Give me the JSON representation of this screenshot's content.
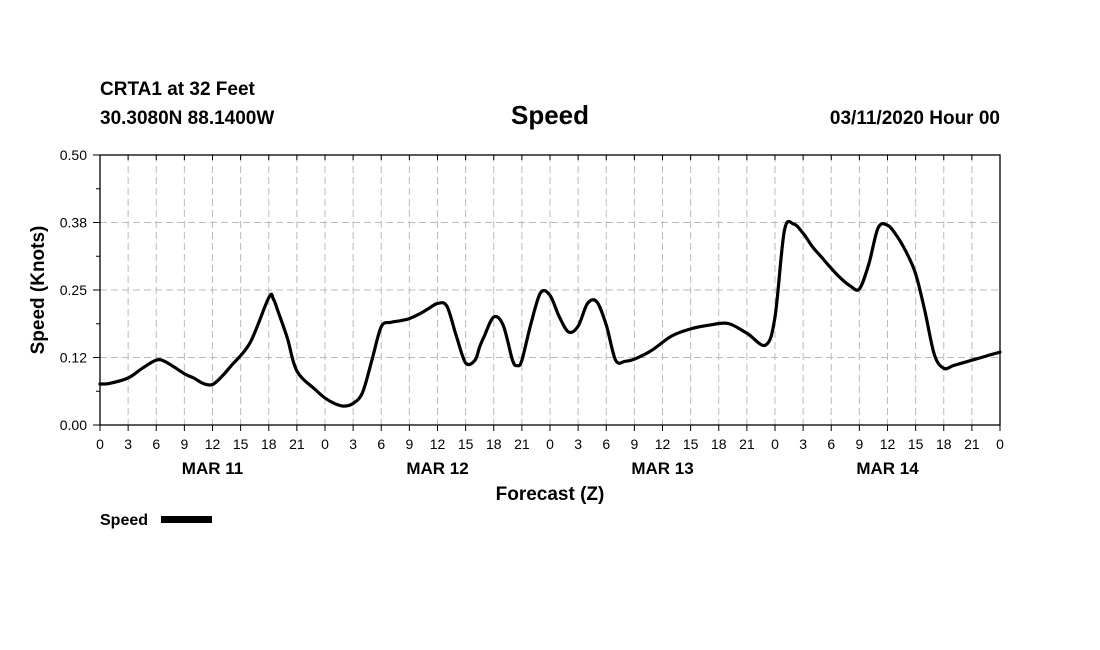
{
  "header": {
    "station": "CRTA1 at 32 Feet",
    "location": "30.3080N 88.1400W",
    "title": "Speed",
    "run": "03/11/2020 Hour 00"
  },
  "legend": {
    "label": "Speed",
    "color": "#000000"
  },
  "chart_data": {
    "type": "line",
    "title": "Speed",
    "xlabel": "Forecast (Z)",
    "ylabel": "Speed (Knots)",
    "ylim": [
      0,
      0.5
    ],
    "xlim": [
      0,
      96
    ],
    "grid": true,
    "legend_position": "bottom-left",
    "y_ticks": [
      "0.00",
      "0.12",
      "0.25",
      "0.38",
      "0.50"
    ],
    "y_tick_values": [
      0,
      0.125,
      0.25,
      0.375,
      0.5
    ],
    "x_ticks": [
      "0",
      "3",
      "6",
      "9",
      "12",
      "15",
      "18",
      "21",
      "0",
      "3",
      "6",
      "9",
      "12",
      "15",
      "18",
      "21",
      "0",
      "3",
      "6",
      "9",
      "12",
      "15",
      "18",
      "21",
      "0",
      "3",
      "6",
      "9",
      "12",
      "15",
      "18",
      "21",
      "0"
    ],
    "day_labels": [
      {
        "label": "MAR 11",
        "hour": 12
      },
      {
        "label": "MAR 12",
        "hour": 36
      },
      {
        "label": "MAR 13",
        "hour": 60
      },
      {
        "label": "MAR 14",
        "hour": 84
      }
    ],
    "series": [
      {
        "name": "Speed",
        "color": "#000000",
        "x": [
          0,
          1,
          3,
          4.5,
          6,
          7,
          9,
          10,
          11,
          12,
          13,
          14,
          16,
          18,
          18.5,
          19,
          20,
          21,
          23,
          24,
          25,
          26,
          27,
          28,
          29,
          30,
          31,
          32,
          33,
          34,
          35,
          36,
          37,
          38,
          39,
          40,
          40.5,
          41,
          42,
          43,
          44,
          44.5,
          45,
          46,
          47,
          48,
          49,
          50,
          51,
          52,
          53,
          54,
          55,
          56,
          57,
          58,
          59,
          61,
          63,
          65,
          67,
          69,
          71,
          72,
          73,
          74,
          75,
          76,
          77,
          78,
          79,
          80,
          81,
          82,
          83,
          84,
          85,
          86,
          87,
          88,
          89,
          90,
          91,
          92,
          93,
          94,
          96
        ],
        "values": [
          0.076,
          0.077,
          0.087,
          0.105,
          0.12,
          0.117,
          0.095,
          0.087,
          0.077,
          0.075,
          0.09,
          0.11,
          0.152,
          0.236,
          0.233,
          0.21,
          0.16,
          0.1,
          0.065,
          0.05,
          0.04,
          0.035,
          0.04,
          0.06,
          0.12,
          0.182,
          0.19,
          0.193,
          0.197,
          0.205,
          0.215,
          0.225,
          0.22,
          0.165,
          0.115,
          0.12,
          0.145,
          0.165,
          0.2,
          0.185,
          0.12,
          0.11,
          0.12,
          0.19,
          0.245,
          0.24,
          0.2,
          0.172,
          0.183,
          0.225,
          0.228,
          0.185,
          0.12,
          0.118,
          0.122,
          0.13,
          0.14,
          0.165,
          0.178,
          0.185,
          0.188,
          0.17,
          0.148,
          0.2,
          0.36,
          0.372,
          0.355,
          0.33,
          0.31,
          0.29,
          0.272,
          0.258,
          0.252,
          0.298,
          0.365,
          0.37,
          0.35,
          0.32,
          0.28,
          0.21,
          0.13,
          0.105,
          0.11,
          0.115,
          0.12,
          0.125,
          0.135
        ]
      }
    ]
  }
}
